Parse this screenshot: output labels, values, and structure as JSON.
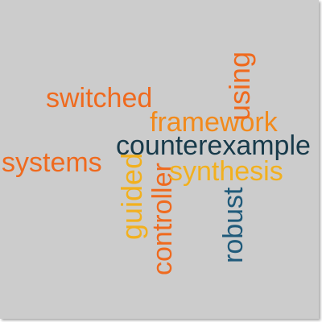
{
  "words": {
    "switched": {
      "text": "switched",
      "color": "#ef6a1e"
    },
    "framework": {
      "text": "framework",
      "color": "#f28a1c"
    },
    "using": {
      "text": "using",
      "color": "#ef6a1e"
    },
    "counterexample": {
      "text": "counterexample",
      "color": "#173a4a"
    },
    "systems": {
      "text": "systems",
      "color": "#ef6a1e"
    },
    "guided": {
      "text": "guided",
      "color": "#f2b01e"
    },
    "controller": {
      "text": "controller",
      "color": "#ef6a1e"
    },
    "synthesis": {
      "text": "synthesis",
      "color": "#f2b01e"
    },
    "robust": {
      "text": "robust",
      "color": "#1f5a7a"
    }
  }
}
